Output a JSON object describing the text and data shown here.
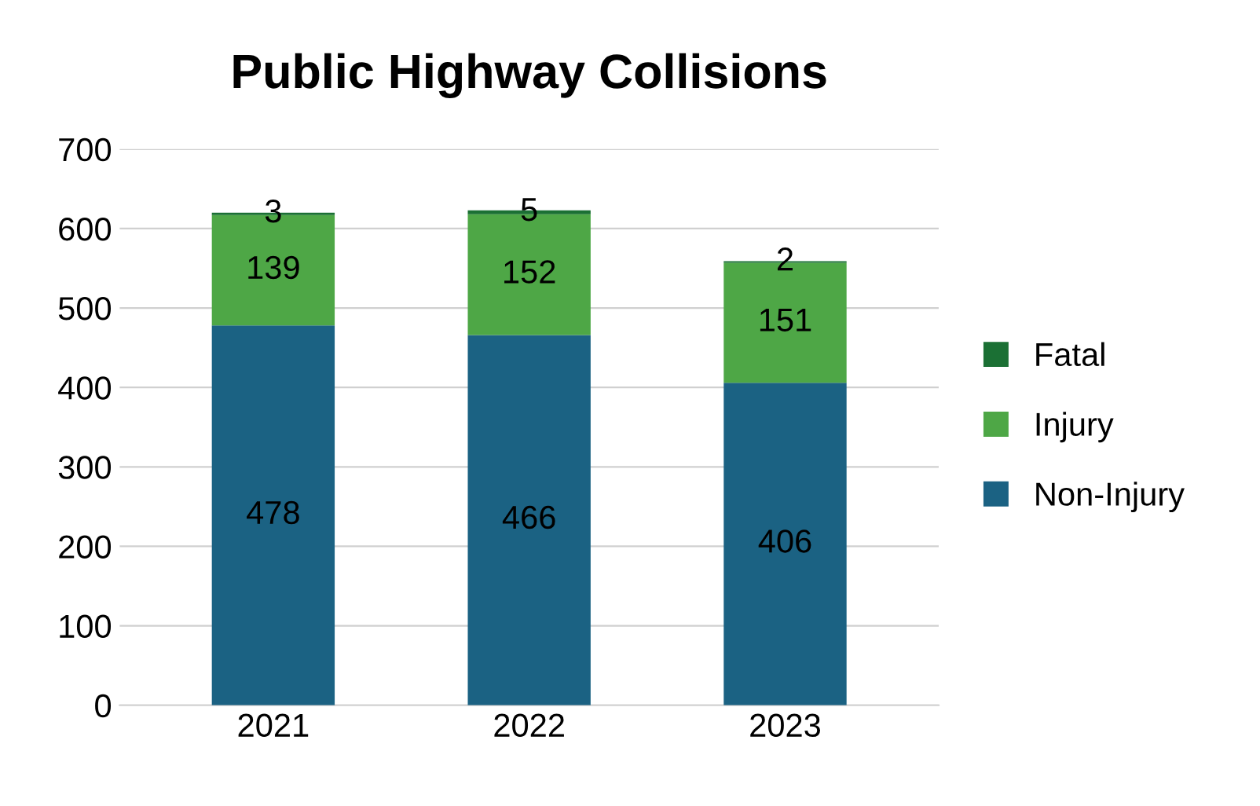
{
  "chart_data": {
    "type": "bar",
    "title": "Public Highway Collisions",
    "categories": [
      "2021",
      "2022",
      "2023"
    ],
    "stacked": true,
    "series": [
      {
        "name": "Non-Injury",
        "color": "#1b6283",
        "values": [
          478,
          466,
          406
        ]
      },
      {
        "name": "Injury",
        "color": "#4ea746",
        "values": [
          139,
          152,
          151
        ]
      },
      {
        "name": "Fatal",
        "color": "#1b7034",
        "values": [
          3,
          5,
          2
        ]
      }
    ],
    "ylim": [
      0,
      700
    ],
    "yticks": [
      0,
      100,
      200,
      300,
      400,
      500,
      600,
      700
    ],
    "grid": "y",
    "legend": "right",
    "data_labels": true
  }
}
